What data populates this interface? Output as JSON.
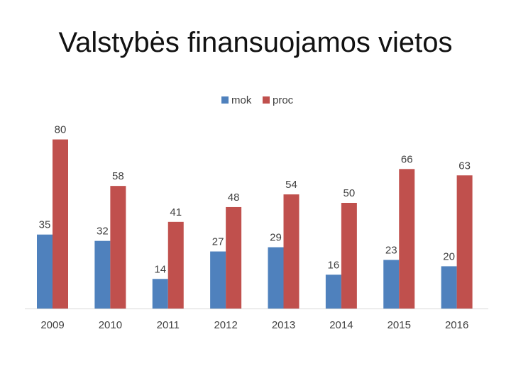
{
  "title": "Valstybės finansuojamos vietos",
  "chart_data": {
    "type": "bar",
    "categories": [
      "2009",
      "2010",
      "2011",
      "2012",
      "2013",
      "2014",
      "2015",
      "2016"
    ],
    "series": [
      {
        "name": "mok",
        "color": "#4F81BD",
        "values": [
          35,
          32,
          14,
          27,
          29,
          16,
          23,
          20
        ]
      },
      {
        "name": "proc",
        "color": "#C0504D",
        "values": [
          80,
          58,
          41,
          48,
          54,
          50,
          66,
          63
        ]
      }
    ],
    "title": "Valstybės finansuojamos vietos",
    "xlabel": "",
    "ylabel": "",
    "ylim": [
      0,
      100
    ],
    "grid": false,
    "legend": "top-center",
    "data_labels": true
  }
}
